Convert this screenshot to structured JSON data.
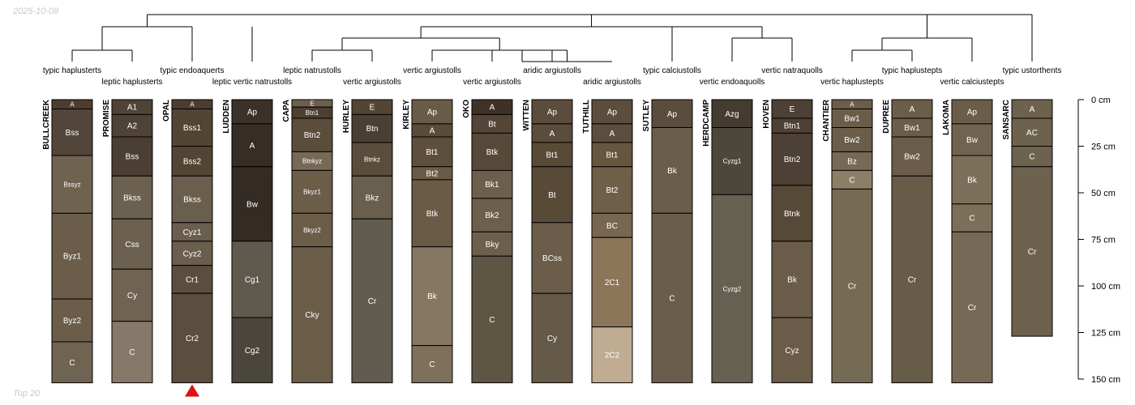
{
  "date_label": "2025-10-08",
  "footer_label": "Top 20",
  "depth_axis": {
    "unit": "cm",
    "max": 150,
    "ticks": [
      0,
      25,
      50,
      75,
      100,
      125,
      150
    ],
    "tick_labels": [
      "0 cm",
      "25 cm",
      "50 cm",
      "75 cm",
      "100 cm",
      "125 cm",
      "150 cm"
    ]
  },
  "marker": {
    "profile": "OPAL",
    "shape": "triangle",
    "color": "#e01010"
  },
  "colors": {
    "line": "#000000",
    "text_light": "#ffffff"
  },
  "profiles": [
    {
      "name": "BULLCREEK",
      "taxon": "typic haplusterts",
      "horizons": [
        {
          "name": "A",
          "top": 0,
          "bottom": 5,
          "color": "#4e3d2f"
        },
        {
          "name": "Bss",
          "top": 5,
          "bottom": 30,
          "color": "#52453a"
        },
        {
          "name": "Bssyz",
          "top": 30,
          "bottom": 61,
          "color": "#6f6350"
        },
        {
          "name": "Byz1",
          "top": 61,
          "bottom": 107,
          "color": "#6b5d4a"
        },
        {
          "name": "Byz2",
          "top": 107,
          "bottom": 130,
          "color": "#6b5d4a"
        },
        {
          "name": "C",
          "top": 130,
          "bottom": 152,
          "color": "#6f6452"
        }
      ]
    },
    {
      "name": "PROMISE",
      "taxon": "leptic haplusterts",
      "horizons": [
        {
          "name": "A1",
          "top": 0,
          "bottom": 8,
          "color": "#4f4236"
        },
        {
          "name": "A2",
          "top": 8,
          "bottom": 20,
          "color": "#4f4236"
        },
        {
          "name": "Bss",
          "top": 20,
          "bottom": 41,
          "color": "#4b3f33"
        },
        {
          "name": "Bkss",
          "top": 41,
          "bottom": 64,
          "color": "#6c604f"
        },
        {
          "name": "Css",
          "top": 64,
          "bottom": 91,
          "color": "#6c604f"
        },
        {
          "name": "Cy",
          "top": 91,
          "bottom": 119,
          "color": "#6f6352"
        },
        {
          "name": "C",
          "top": 119,
          "bottom": 152,
          "color": "#86796a"
        }
      ]
    },
    {
      "name": "OPAL",
      "taxon": "typic endoaquerts",
      "horizons": [
        {
          "name": "A",
          "top": 0,
          "bottom": 5,
          "color": "#4b3e31"
        },
        {
          "name": "Bss1",
          "top": 5,
          "bottom": 25,
          "color": "#524533"
        },
        {
          "name": "Bss2",
          "top": 25,
          "bottom": 41,
          "color": "#524533"
        },
        {
          "name": "Bkss",
          "top": 41,
          "bottom": 66,
          "color": "#6a5e4d"
        },
        {
          "name": "Cyz1",
          "top": 66,
          "bottom": 76,
          "color": "#6a5e4d"
        },
        {
          "name": "Cyz2",
          "top": 76,
          "bottom": 89,
          "color": "#6a5e4d"
        },
        {
          "name": "Cr1",
          "top": 89,
          "bottom": 104,
          "color": "#5b4e3e"
        },
        {
          "name": "Cr2",
          "top": 104,
          "bottom": 152,
          "color": "#5b4e3e"
        }
      ]
    },
    {
      "name": "LUDDEN",
      "taxon": "leptic vertic natrustolls",
      "horizons": [
        {
          "name": "Ap",
          "top": 0,
          "bottom": 13,
          "color": "#3b3128"
        },
        {
          "name": "A",
          "top": 13,
          "bottom": 36,
          "color": "#382d25"
        },
        {
          "name": "Bw",
          "top": 36,
          "bottom": 76,
          "color": "#342b24"
        },
        {
          "name": "Cg1",
          "top": 76,
          "bottom": 117,
          "color": "#5f5a4e"
        },
        {
          "name": "Cg2",
          "top": 117,
          "bottom": 152,
          "color": "#4a463b"
        }
      ]
    },
    {
      "name": "CAPA",
      "taxon": "leptic natrustolls",
      "horizons": [
        {
          "name": "E",
          "top": 0,
          "bottom": 4,
          "color": "#6d5f4d"
        },
        {
          "name": "Btn1",
          "top": 4,
          "bottom": 10,
          "color": "#4c3f31"
        },
        {
          "name": "Btn2",
          "top": 10,
          "bottom": 28,
          "color": "#5b4d3b"
        },
        {
          "name": "Btnkyz",
          "top": 28,
          "bottom": 38,
          "color": "#766a56"
        },
        {
          "name": "Bkyz1",
          "top": 38,
          "bottom": 61,
          "color": "#6b5d48"
        },
        {
          "name": "Bkyz2",
          "top": 61,
          "bottom": 79,
          "color": "#6b5d48"
        },
        {
          "name": "Cky",
          "top": 79,
          "bottom": 152,
          "color": "#6b5d48"
        }
      ]
    },
    {
      "name": "HURLEY",
      "taxon": "vertic argiustolls",
      "horizons": [
        {
          "name": "E",
          "top": 0,
          "bottom": 8,
          "color": "#524536"
        },
        {
          "name": "Btn",
          "top": 8,
          "bottom": 23,
          "color": "#4b3f33"
        },
        {
          "name": "Btnkz",
          "top": 23,
          "bottom": 41,
          "color": "#5a4d3c"
        },
        {
          "name": "Bkz",
          "top": 41,
          "bottom": 64,
          "color": "#6a5f4e"
        },
        {
          "name": "Cr",
          "top": 64,
          "bottom": 152,
          "color": "#625c50"
        }
      ]
    },
    {
      "name": "KIRLEY",
      "taxon": "vertic argiustolls",
      "horizons": [
        {
          "name": "Ap",
          "top": 0,
          "bottom": 13,
          "color": "#6a5b46"
        },
        {
          "name": "A",
          "top": 13,
          "bottom": 20,
          "color": "#594c3b"
        },
        {
          "name": "Bt1",
          "top": 20,
          "bottom": 36,
          "color": "#5d4f3c"
        },
        {
          "name": "Bt2",
          "top": 36,
          "bottom": 43,
          "color": "#6a5b46"
        },
        {
          "name": "Btk",
          "top": 43,
          "bottom": 79,
          "color": "#6a5b46"
        },
        {
          "name": "Bk",
          "top": 79,
          "bottom": 132,
          "color": "#857762"
        },
        {
          "name": "C",
          "top": 132,
          "bottom": 152,
          "color": "#7f705b"
        }
      ]
    },
    {
      "name": "OKO",
      "taxon": "vertic argiustolls",
      "horizons": [
        {
          "name": "A",
          "top": 0,
          "bottom": 8,
          "color": "#3e3227"
        },
        {
          "name": "Bt",
          "top": 8,
          "bottom": 18,
          "color": "#544536"
        },
        {
          "name": "Btk",
          "top": 18,
          "bottom": 38,
          "color": "#564938"
        },
        {
          "name": "Bk1",
          "top": 38,
          "bottom": 53,
          "color": "#6c604d"
        },
        {
          "name": "Bk2",
          "top": 53,
          "bottom": 71,
          "color": "#6c604d"
        },
        {
          "name": "Bky",
          "top": 71,
          "bottom": 84,
          "color": "#6c604d"
        },
        {
          "name": "C",
          "top": 84,
          "bottom": 152,
          "color": "#5f5543"
        }
      ]
    },
    {
      "name": "WITTEN",
      "taxon": "aridic argiustolls",
      "horizons": [
        {
          "name": "Ap",
          "top": 0,
          "bottom": 13,
          "color": "#5b4c3b"
        },
        {
          "name": "A",
          "top": 13,
          "bottom": 23,
          "color": "#5b4c3b"
        },
        {
          "name": "Bt1",
          "top": 23,
          "bottom": 36,
          "color": "#594a38"
        },
        {
          "name": "Bt",
          "top": 36,
          "bottom": 66,
          "color": "#594a38"
        },
        {
          "name": "BCss",
          "top": 66,
          "bottom": 104,
          "color": "#6c5d4b"
        },
        {
          "name": "Cy",
          "top": 104,
          "bottom": 152,
          "color": "#655a48"
        }
      ]
    },
    {
      "name": "TUTHILL",
      "taxon": "aridic argiustolls",
      "horizons": [
        {
          "name": "Ap",
          "top": 0,
          "bottom": 13,
          "color": "#5d4d3c"
        },
        {
          "name": "A",
          "top": 13,
          "bottom": 23,
          "color": "#5d4d3c"
        },
        {
          "name": "Bt1",
          "top": 23,
          "bottom": 36,
          "color": "#66553f"
        },
        {
          "name": "Bt2",
          "top": 36,
          "bottom": 61,
          "color": "#6f5e48"
        },
        {
          "name": "BC",
          "top": 61,
          "bottom": 74,
          "color": "#786650"
        },
        {
          "name": "2C1",
          "top": 74,
          "bottom": 122,
          "color": "#8d7559"
        },
        {
          "name": "2C2",
          "top": 122,
          "bottom": 152,
          "color": "#c0ab93"
        }
      ]
    },
    {
      "name": "SUTLEY",
      "taxon": "typic calciustolls",
      "horizons": [
        {
          "name": "Ap",
          "top": 0,
          "bottom": 15,
          "color": "#5b4d3d"
        },
        {
          "name": "Bk",
          "top": 15,
          "bottom": 61,
          "color": "#6a5d4b"
        },
        {
          "name": "C",
          "top": 61,
          "bottom": 152,
          "color": "#6a5d4b"
        }
      ]
    },
    {
      "name": "HERDCAMP",
      "taxon": "vertic endoaquolls",
      "horizons": [
        {
          "name": "Azg",
          "top": 0,
          "bottom": 15,
          "color": "#443b31"
        },
        {
          "name": "Cyzg1",
          "top": 15,
          "bottom": 51,
          "color": "#4d463a"
        },
        {
          "name": "Cyzg2",
          "top": 51,
          "bottom": 152,
          "color": "#656050"
        }
      ]
    },
    {
      "name": "HOVEN",
      "taxon": "vertic natraquolls",
      "horizons": [
        {
          "name": "E",
          "top": 0,
          "bottom": 10,
          "color": "#4d4034"
        },
        {
          "name": "Btn1",
          "top": 10,
          "bottom": 18,
          "color": "#4d4034"
        },
        {
          "name": "Btn2",
          "top": 18,
          "bottom": 46,
          "color": "#4d4034"
        },
        {
          "name": "Btnk",
          "top": 46,
          "bottom": 76,
          "color": "#574937"
        },
        {
          "name": "Bk",
          "top": 76,
          "bottom": 117,
          "color": "#6a5c48"
        },
        {
          "name": "Cyz",
          "top": 117,
          "bottom": 152,
          "color": "#6a5c48"
        }
      ]
    },
    {
      "name": "CHANTIER",
      "taxon": "vertic haplustepts",
      "horizons": [
        {
          "name": "A",
          "top": 0,
          "bottom": 5,
          "color": "#6b5d49"
        },
        {
          "name": "Bw1",
          "top": 5,
          "bottom": 15,
          "color": "#6b5d49"
        },
        {
          "name": "Bw2",
          "top": 15,
          "bottom": 28,
          "color": "#6b5d49"
        },
        {
          "name": "Bz",
          "top": 28,
          "bottom": 38,
          "color": "#776a54"
        },
        {
          "name": "C",
          "top": 38,
          "bottom": 48,
          "color": "#8c7f67"
        },
        {
          "name": "Cr",
          "top": 48,
          "bottom": 152,
          "color": "#756b55"
        }
      ]
    },
    {
      "name": "DUPREE",
      "taxon": "typic haplustepts",
      "horizons": [
        {
          "name": "A",
          "top": 0,
          "bottom": 10,
          "color": "#6b5d49"
        },
        {
          "name": "Bw1",
          "top": 10,
          "bottom": 20,
          "color": "#6b5d49"
        },
        {
          "name": "Bw2",
          "top": 20,
          "bottom": 41,
          "color": "#6b5d49"
        },
        {
          "name": "Cr",
          "top": 41,
          "bottom": 152,
          "color": "#675c47"
        }
      ]
    },
    {
      "name": "LAKOMA",
      "taxon": "vertic calciustepts",
      "horizons": [
        {
          "name": "Ap",
          "top": 0,
          "bottom": 13,
          "color": "#6b5d49"
        },
        {
          "name": "Bw",
          "top": 13,
          "bottom": 30,
          "color": "#706450"
        },
        {
          "name": "Bk",
          "top": 30,
          "bottom": 56,
          "color": "#7c6f5a"
        },
        {
          "name": "C",
          "top": 56,
          "bottom": 71,
          "color": "#7c6f5a"
        },
        {
          "name": "Cr",
          "top": 71,
          "bottom": 152,
          "color": "#766a56"
        }
      ]
    },
    {
      "name": "SANSARC",
      "taxon": "typic ustorthents",
      "horizons": [
        {
          "name": "A",
          "top": 0,
          "bottom": 10,
          "color": "#6d624e"
        },
        {
          "name": "AC",
          "top": 10,
          "bottom": 25,
          "color": "#6d624e"
        },
        {
          "name": "C",
          "top": 25,
          "bottom": 36,
          "color": "#6d624e"
        },
        {
          "name": "Cr",
          "top": 36,
          "bottom": 127,
          "color": "#6d624e"
        }
      ]
    }
  ]
}
